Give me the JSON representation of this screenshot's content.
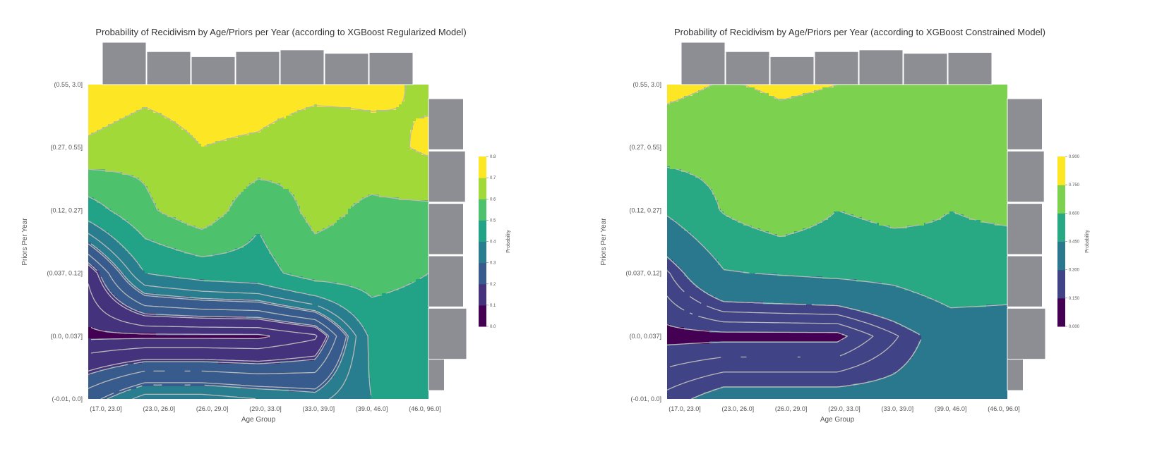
{
  "chart_data": [
    {
      "type": "contour",
      "title": "Probability of Recidivism by Age/Priors per Year (according to XGBoost Regularized Model)",
      "xlabel": "Age Group",
      "ylabel": "Priors Per Year",
      "x_categories": [
        "(17.0, 23.0]",
        "(23.0, 26.0]",
        "(26.0, 29.0]",
        "(29.0, 33.0]",
        "(33.0, 39.0]",
        "(39.0, 46.0]",
        "(46.0, 96.0]"
      ],
      "y_categories": [
        "(-0.01, 0.0]",
        "(0.0, 0.037]",
        "(0.037, 0.12]",
        "(0.12, 0.27]",
        "(0.27, 0.55]",
        "(0.55, 3.0]"
      ],
      "probability": [
        [
          0.27,
          0.36,
          0.36,
          0.34,
          0.32,
          0.4,
          0.4
        ],
        [
          0.09,
          0.09,
          0.09,
          0.09,
          0.13,
          0.42,
          0.42
        ],
        [
          0.15,
          0.4,
          0.44,
          0.46,
          0.55,
          0.55,
          0.5
        ],
        [
          0.45,
          0.58,
          0.67,
          0.52,
          0.63,
          0.58,
          0.58
        ],
        [
          0.68,
          0.63,
          0.7,
          0.68,
          0.62,
          0.66,
          0.72
        ],
        [
          0.79,
          0.74,
          0.76,
          0.76,
          0.74,
          0.73,
          0.68
        ]
      ],
      "colorbar": {
        "label": "Probability",
        "ticks": [
          "0.0",
          "0.1",
          "0.2",
          "0.3",
          "0.4",
          "0.5",
          "0.6",
          "0.7",
          "0.8"
        ],
        "levels": [
          0.0,
          0.1,
          0.2,
          0.3,
          0.4,
          0.5,
          0.6,
          0.7,
          0.8
        ]
      },
      "x_marginal_counts": [
        1.0,
        0.78,
        0.66,
        0.78,
        0.82,
        0.74,
        0.76
      ],
      "y_marginal_counts": [
        0.25,
        0.6,
        0.55,
        0.55,
        0.58,
        0.55
      ],
      "line_levels": [
        0.14,
        0.19,
        0.24,
        0.29,
        0.34
      ]
    },
    {
      "type": "contour",
      "title": "Probability of Recidivism by Age/Priors per Year (according to XGBoost Constrained Model)",
      "xlabel": "Age Group",
      "ylabel": "Priors Per Year",
      "x_categories": [
        "(17.0, 23.0]",
        "(23.0, 26.0]",
        "(26.0, 29.0]",
        "(29.0, 33.0]",
        "(33.0, 39.0]",
        "(39.0, 46.0]",
        "(46.0, 96.0]"
      ],
      "y_categories": [
        "(-0.01, 0.0]",
        "(0.0, 0.037]",
        "(0.037, 0.12]",
        "(0.12, 0.27]",
        "(0.27, 0.55]",
        "(0.55, 3.0]"
      ],
      "probability": [
        [
          0.27,
          0.34,
          0.34,
          0.34,
          0.34,
          0.36,
          0.36
        ],
        [
          0.13,
          0.13,
          0.13,
          0.13,
          0.24,
          0.36,
          0.36
        ],
        [
          0.24,
          0.44,
          0.46,
          0.48,
          0.5,
          0.56,
          0.54
        ],
        [
          0.47,
          0.61,
          0.7,
          0.6,
          0.64,
          0.6,
          0.62
        ],
        [
          0.66,
          0.64,
          0.69,
          0.68,
          0.62,
          0.66,
          0.73
        ],
        [
          0.79,
          0.74,
          0.77,
          0.75,
          0.74,
          0.74,
          0.68
        ]
      ],
      "colorbar": {
        "label": "Probability",
        "ticks": [
          "0.000",
          "0.150",
          "0.300",
          "0.450",
          "0.600",
          "0.750",
          "0.900"
        ],
        "levels": [
          0.0,
          0.15,
          0.3,
          0.45,
          0.6,
          0.75,
          0.9
        ]
      },
      "x_marginal_counts": [
        1.0,
        0.78,
        0.66,
        0.78,
        0.82,
        0.74,
        0.76
      ],
      "y_marginal_counts": [
        0.25,
        0.6,
        0.55,
        0.55,
        0.58,
        0.55
      ],
      "line_levels": [
        0.2,
        0.25,
        0.3
      ]
    }
  ]
}
